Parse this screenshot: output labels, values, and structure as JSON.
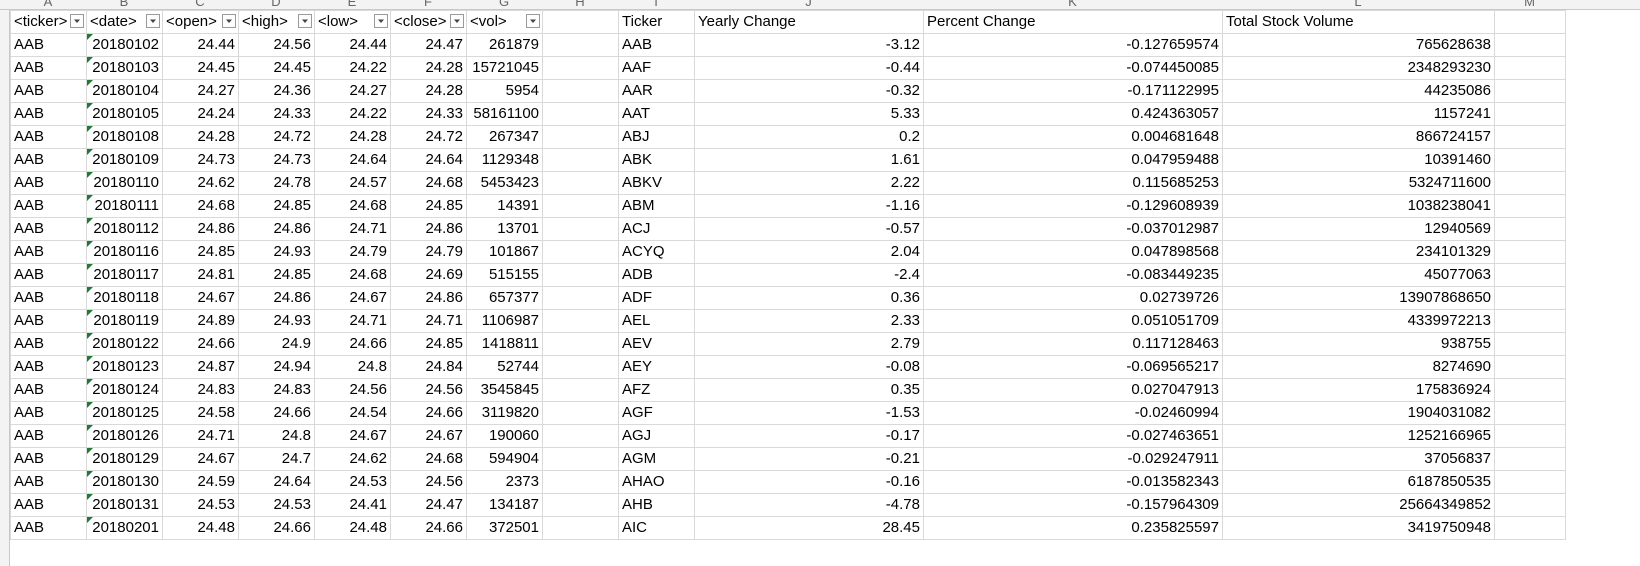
{
  "column_letters": [
    "A",
    "B",
    "C",
    "D",
    "E",
    "F",
    "G",
    "H",
    "I",
    "J",
    "K",
    "L",
    "M"
  ],
  "data_headers": [
    "<ticker>",
    "<date>",
    "<open>",
    "<high>",
    "<low>",
    "<close>",
    "<vol>"
  ],
  "summary_headers": [
    "Ticker",
    "Yearly Change",
    "Percent Change",
    "Total Stock Volume"
  ],
  "rows": [
    [
      "AAB",
      "20180102",
      "24.44",
      "24.56",
      "24.44",
      "24.47",
      "261879",
      "AAB",
      "-3.12",
      "-0.127659574",
      "765628638"
    ],
    [
      "AAB",
      "20180103",
      "24.45",
      "24.45",
      "24.22",
      "24.28",
      "15721045",
      "AAF",
      "-0.44",
      "-0.074450085",
      "2348293230"
    ],
    [
      "AAB",
      "20180104",
      "24.27",
      "24.36",
      "24.27",
      "24.28",
      "5954",
      "AAR",
      "-0.32",
      "-0.171122995",
      "44235086"
    ],
    [
      "AAB",
      "20180105",
      "24.24",
      "24.33",
      "24.22",
      "24.33",
      "58161100",
      "AAT",
      "5.33",
      "0.424363057",
      "1157241"
    ],
    [
      "AAB",
      "20180108",
      "24.28",
      "24.72",
      "24.28",
      "24.72",
      "267347",
      "ABJ",
      "0.2",
      "0.004681648",
      "866724157"
    ],
    [
      "AAB",
      "20180109",
      "24.73",
      "24.73",
      "24.64",
      "24.64",
      "1129348",
      "ABK",
      "1.61",
      "0.047959488",
      "10391460"
    ],
    [
      "AAB",
      "20180110",
      "24.62",
      "24.78",
      "24.57",
      "24.68",
      "5453423",
      "ABKV",
      "2.22",
      "0.115685253",
      "5324711600"
    ],
    [
      "AAB",
      "20180111",
      "24.68",
      "24.85",
      "24.68",
      "24.85",
      "14391",
      "ABM",
      "-1.16",
      "-0.129608939",
      "1038238041"
    ],
    [
      "AAB",
      "20180112",
      "24.86",
      "24.86",
      "24.71",
      "24.86",
      "13701",
      "ACJ",
      "-0.57",
      "-0.037012987",
      "12940569"
    ],
    [
      "AAB",
      "20180116",
      "24.85",
      "24.93",
      "24.79",
      "24.79",
      "101867",
      "ACYQ",
      "2.04",
      "0.047898568",
      "234101329"
    ],
    [
      "AAB",
      "20180117",
      "24.81",
      "24.85",
      "24.68",
      "24.69",
      "515155",
      "ADB",
      "-2.4",
      "-0.083449235",
      "45077063"
    ],
    [
      "AAB",
      "20180118",
      "24.67",
      "24.86",
      "24.67",
      "24.86",
      "657377",
      "ADF",
      "0.36",
      "0.02739726",
      "13907868650"
    ],
    [
      "AAB",
      "20180119",
      "24.89",
      "24.93",
      "24.71",
      "24.71",
      "1106987",
      "AEL",
      "2.33",
      "0.051051709",
      "4339972213"
    ],
    [
      "AAB",
      "20180122",
      "24.66",
      "24.9",
      "24.66",
      "24.85",
      "1418811",
      "AEV",
      "2.79",
      "0.117128463",
      "938755"
    ],
    [
      "AAB",
      "20180123",
      "24.87",
      "24.94",
      "24.8",
      "24.84",
      "52744",
      "AEY",
      "-0.08",
      "-0.069565217",
      "8274690"
    ],
    [
      "AAB",
      "20180124",
      "24.83",
      "24.83",
      "24.56",
      "24.56",
      "3545845",
      "AFZ",
      "0.35",
      "0.027047913",
      "175836924"
    ],
    [
      "AAB",
      "20180125",
      "24.58",
      "24.66",
      "24.54",
      "24.66",
      "3119820",
      "AGF",
      "-1.53",
      "-0.02460994",
      "1904031082"
    ],
    [
      "AAB",
      "20180126",
      "24.71",
      "24.8",
      "24.67",
      "24.67",
      "190060",
      "AGJ",
      "-0.17",
      "-0.027463651",
      "1252166965"
    ],
    [
      "AAB",
      "20180129",
      "24.67",
      "24.7",
      "24.62",
      "24.68",
      "594904",
      "AGM",
      "-0.21",
      "-0.029247911",
      "37056837"
    ],
    [
      "AAB",
      "20180130",
      "24.59",
      "24.64",
      "24.53",
      "24.56",
      "2373",
      "AHAO",
      "-0.16",
      "-0.013582343",
      "6187850535"
    ],
    [
      "AAB",
      "20180131",
      "24.53",
      "24.53",
      "24.41",
      "24.47",
      "134187",
      "AHB",
      "-4.78",
      "-0.157964309",
      "25664349852"
    ],
    [
      "AAB",
      "20180201",
      "24.48",
      "24.66",
      "24.48",
      "24.66",
      "372501",
      "AIC",
      "28.45",
      "0.235825597",
      "3419750948"
    ]
  ],
  "colors": {
    "grid": "#d9d9d9",
    "error_flag": "#1e7b34",
    "header_strip": "#f3f3f3"
  },
  "icons": {
    "filter": "filter-dropdown-icon",
    "error": "green-triangle-error-indicator"
  }
}
